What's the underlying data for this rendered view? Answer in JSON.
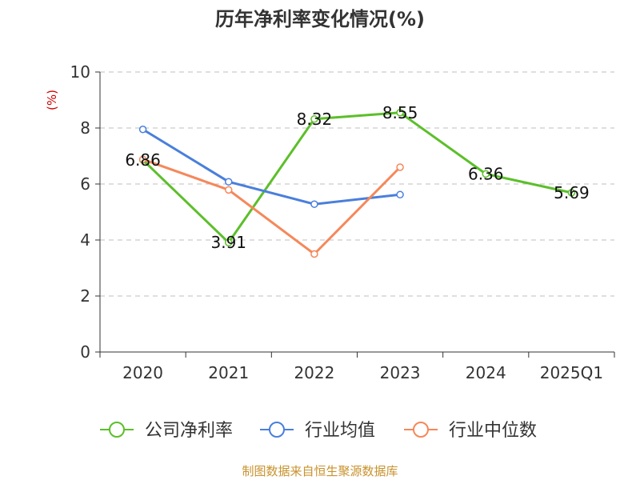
{
  "chart_data": {
    "type": "line",
    "title": "历年净利率变化情况(%)",
    "ylabel": "(%)",
    "xlabel": "",
    "ylim": [
      0,
      10
    ],
    "yticks": [
      "0",
      "2",
      "4",
      "6",
      "8",
      "10"
    ],
    "categories": [
      "2020",
      "2021",
      "2022",
      "2023",
      "2024",
      "2025Q1"
    ],
    "grid": true,
    "legend_position": "bottom",
    "series": [
      {
        "name": "公司净利率",
        "color": "#5cbf2a",
        "values": [
          6.86,
          3.91,
          8.32,
          8.55,
          6.36,
          5.69
        ],
        "labels": [
          "6.86",
          "3.91",
          "8.32",
          "8.55",
          "6.36",
          "5.69"
        ]
      },
      {
        "name": "行业均值",
        "color": "#4a7fdc",
        "values": [
          7.95,
          6.08,
          5.28,
          5.62,
          null,
          null
        ]
      },
      {
        "name": "行业中位数",
        "color": "#f5885a",
        "values": [
          6.88,
          5.79,
          3.5,
          6.6,
          null,
          null
        ]
      }
    ]
  },
  "footer": "制图数据来自恒生聚源数据库"
}
